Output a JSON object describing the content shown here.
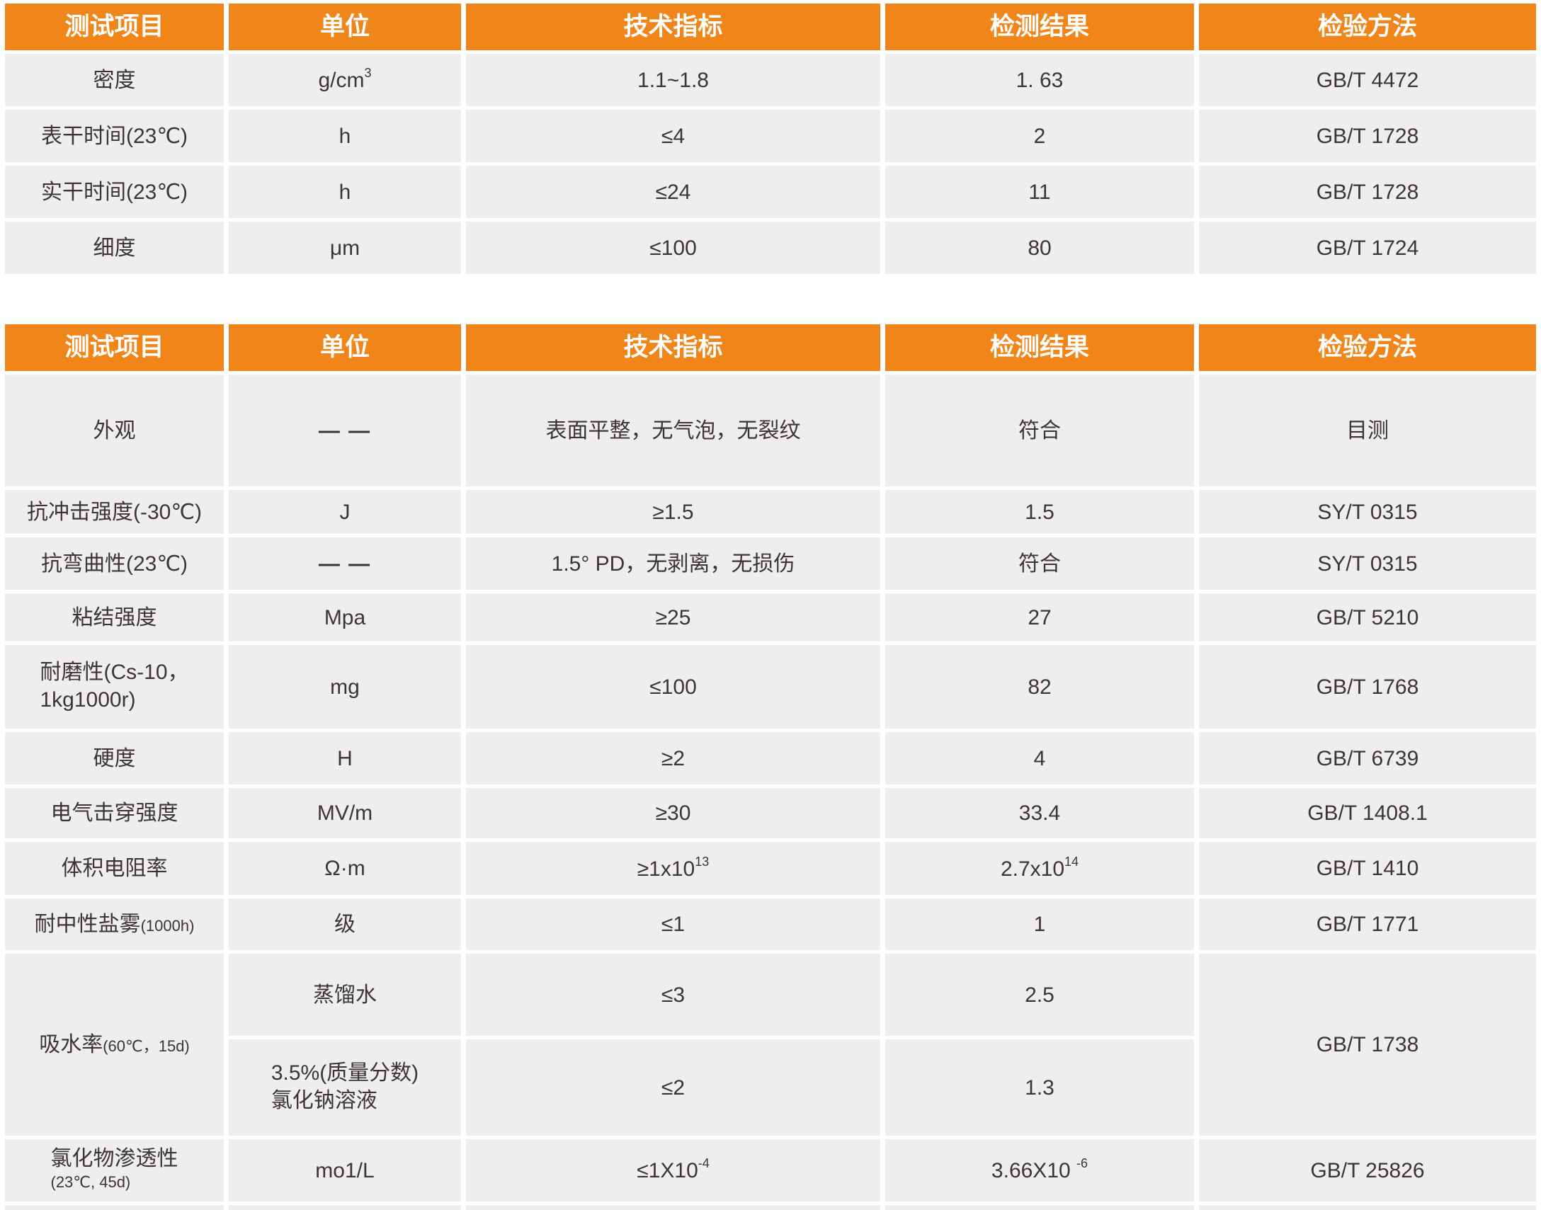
{
  "colors": {
    "header_bg": "#f08519",
    "row_bg": "#efeded",
    "header_text": "#ffffff",
    "body_text": "#3a3637"
  },
  "table1": {
    "headers": [
      "测试项目",
      "单位",
      "技术指标",
      "检测结果",
      "检验方法"
    ],
    "rows": [
      {
        "item": "密度",
        "unit": "g/cm",
        "unit_sup": "3",
        "spec": "1.1~1.8",
        "result": "1. 63",
        "method": "GB/T 4472"
      },
      {
        "item": "表干时间(23℃)",
        "unit": "h",
        "spec": "≤4",
        "result": "2",
        "method": "GB/T 1728"
      },
      {
        "item": "实干时间(23℃)",
        "unit": "h",
        "spec": "≤24",
        "result": "11",
        "method": "GB/T 1728"
      },
      {
        "item": "细度",
        "unit": "μm",
        "spec": "≤100",
        "result": "80",
        "method": "GB/T 1724"
      }
    ]
  },
  "table2": {
    "headers": [
      "测试项目",
      "单位",
      "技术指标",
      "检测结果",
      "检验方法"
    ],
    "rows": [
      {
        "item": "外观",
        "unit": "— —",
        "spec": "表面平整，无气泡，无裂纹",
        "result": "符合",
        "method": "目测"
      },
      {
        "item": "抗冲击强度(-30℃)",
        "unit": "J",
        "spec": "≥1.5",
        "result": "1.5",
        "method": "SY/T 0315"
      },
      {
        "item": "抗弯曲性(23℃)",
        "unit": "— —",
        "spec": "1.5° PD，无剥离，无损伤",
        "result": "符合",
        "method": "SY/T 0315"
      },
      {
        "item": "粘结强度",
        "unit": "Mpa",
        "spec": "≥25",
        "result": "27",
        "method": "GB/T 5210"
      },
      {
        "item": "耐磨性(Cs-10，",
        "item_line2": "1kg1000r)",
        "unit": "mg",
        "spec": "≤100",
        "result": "82",
        "method": "GB/T 1768"
      },
      {
        "item": "硬度",
        "unit": "H",
        "spec": "≥2",
        "result": "4",
        "method": "GB/T 6739"
      },
      {
        "item": "电气击穿强度",
        "unit": "MV/m",
        "spec": "≥30",
        "result": "33.4",
        "method": "GB/T 1408.1"
      },
      {
        "item": "体积电阻率",
        "unit": "Ω·m",
        "spec": "≥1x10",
        "spec_sup": "13",
        "result": "2.7x10",
        "result_sup": "14",
        "method": "GB/T 1410"
      },
      {
        "item": "耐中性盐雾",
        "item_small": "(1000h)",
        "unit": "级",
        "spec": "≤1",
        "result": "1",
        "method": "GB/T 1771"
      },
      {
        "item": "吸水率",
        "item_small": "(60℃，15d)",
        "unit": "蒸馏水",
        "spec": "≤3",
        "result": "2.5",
        "method": "GB/T 1738"
      },
      {
        "unit": "3.5%(质量分数)",
        "unit_line2": "氯化钠溶液",
        "spec": "≤2",
        "result": "1.3"
      },
      {
        "item": "氯化物渗透性",
        "item_small": "(23℃, 45d)",
        "unit": "mo1/L",
        "spec": "≤1X10",
        "spec_sup": "-4",
        "result": "3.66X10",
        "result_sup": "-6",
        "method": "GB/T 25826"
      }
    ]
  }
}
